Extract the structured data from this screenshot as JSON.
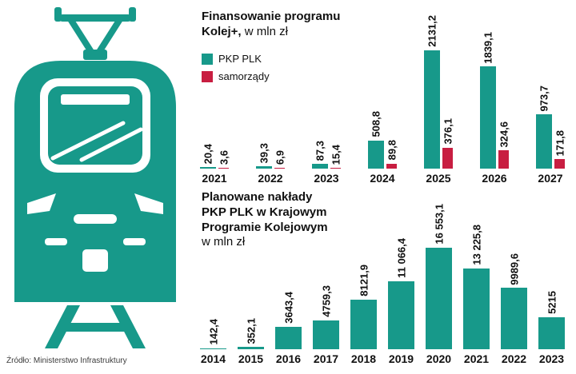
{
  "source": "Źródło: Ministerstwo Infrastruktury",
  "colors": {
    "teal": "#17998a",
    "red": "#c81e41"
  },
  "chart_data": [
    {
      "type": "bar",
      "title_l1": "Finansowanie programu",
      "title_l2": "Kolej+,",
      "unit": "w mln zł",
      "legend": [
        "PKP PLK",
        "samorządy"
      ],
      "legend_position": "top-left",
      "categories": [
        "2021",
        "2022",
        "2023",
        "2024",
        "2025",
        "2026",
        "2027"
      ],
      "series": [
        {
          "name": "PKP PLK",
          "color": "#17998a",
          "values": [
            20.4,
            39.3,
            87.3,
            508.8,
            2131.2,
            1839.1,
            973.7
          ],
          "labels": [
            "20,4",
            "39,3",
            "87,3",
            "508,8",
            "2131,2",
            "1839,1",
            "973,7"
          ]
        },
        {
          "name": "samorządy",
          "color": "#c81e41",
          "values": [
            3.6,
            6.9,
            15.4,
            89.8,
            376.1,
            324.6,
            171.8
          ],
          "labels": [
            "3,6",
            "6,9",
            "15,4",
            "89,8",
            "376,1",
            "324,6",
            "171,8"
          ]
        }
      ],
      "ymax": 2131.2,
      "grid": false
    },
    {
      "type": "bar",
      "title_l1": "Planowane nakłady",
      "title_l2": "PKP PLK w Krajowym",
      "title_l3": "Programie Kolejowym",
      "unit": "w mln zł",
      "categories": [
        "2014",
        "2015",
        "2016",
        "2017",
        "2018",
        "2019",
        "2020",
        "2021",
        "2022",
        "2023"
      ],
      "series": [
        {
          "name": "PKP PLK",
          "color": "#17998a",
          "values": [
            142.4,
            352.1,
            3643.4,
            4759.3,
            8121.9,
            11066.4,
            16553.1,
            13225.8,
            9989.6,
            5215
          ],
          "labels": [
            "142,4",
            "352,1",
            "3643,4",
            "4759,3",
            "8121,9",
            "11 066,4",
            "16 553,1",
            "13 225,8",
            "9989,6",
            "5215"
          ]
        }
      ],
      "ymax": 16553.1,
      "grid": false
    }
  ]
}
